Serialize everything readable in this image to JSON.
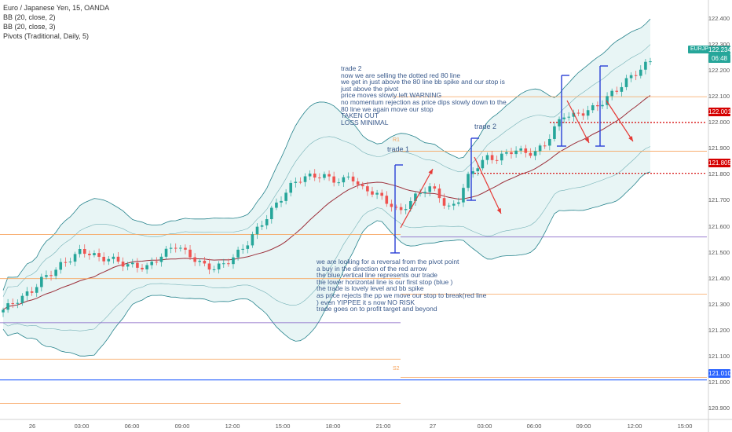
{
  "legend": {
    "symbol": "Euro / Japanese Yen, 15, OANDA",
    "bb1": "BB (20, close, 2)",
    "bb2": "BB (20, close, 3)",
    "pivots": "Pivots (Traditional, Daily, 5)"
  },
  "annotations": {
    "trade1_label": "trade 1",
    "trade2_label": "trade 2",
    "note_top": "trade 2\nnow we are selling the dotted red 80 line\nwe get in just above the 80 line bb spike and our stop is\njust above the pivot\nprice moves slowly left WARNING\nno momentum rejection as price dips slowly down to the\n80 line we again move our stop\nTAKEN OUT\nLOSS MINIMAL",
    "note_bottom": "we are looking for a reversal from the pivot point\na buy in the direction of the red arrow\nthe blue vertical line represents our trade\nthe lower horizontal line is our first stop (blue )\nthe trade is lovely level and bb spike\nas price rejects the pp we move our stop to break(red line\n) even YIPPEE it s now NO RISK\ntrade goes on to profit target and beyond",
    "r1_label": "R1",
    "s2_label": "S2"
  },
  "price_tags": {
    "symbol": "EURJPY",
    "last": "122.234",
    "countdown": "06:48",
    "red_upper": "122.001",
    "red_lower": "121.805",
    "blue_low": "121.010"
  },
  "colors": {
    "bull": "#26a69a",
    "bear": "#ef5350",
    "bb_fill": "#d5ecec",
    "bb_line": "#26838c",
    "basis": "#9c2f3a",
    "pivot_orange": "#f7a35c",
    "pivot_purple": "#7e57c2",
    "blue_line": "#2962ff",
    "red_dotted": "#d50000",
    "trade_blue": "#2a3fd6",
    "arrow_red": "#e53935"
  },
  "chart_data": {
    "type": "candlestick",
    "symbol": "Euro / Japanese Yen, 15, OANDA",
    "ylim": [
      120.87,
      122.46
    ],
    "y_ticks": [
      "122.400",
      "122.300",
      "122.200",
      "122.100",
      "122.000",
      "121.900",
      "121.800",
      "121.700",
      "121.600",
      "121.500",
      "121.400",
      "121.300",
      "121.200",
      "121.100",
      "121.000",
      "120.900"
    ],
    "x_ticks": [
      "26",
      "03:00",
      "06:00",
      "09:00",
      "12:00",
      "15:00",
      "18:00",
      "21:00",
      "27",
      "03:00",
      "06:00",
      "09:00",
      "12:00",
      "15:00"
    ],
    "close_path": [
      121.28,
      121.3,
      121.32,
      121.35,
      121.4,
      121.43,
      121.46,
      121.48,
      121.5,
      121.49,
      121.47,
      121.48,
      121.47,
      121.46,
      121.45,
      121.44,
      121.47,
      121.5,
      121.53,
      121.5,
      121.48,
      121.45,
      121.44,
      121.45,
      121.48,
      121.52,
      121.58,
      121.63,
      121.68,
      121.72,
      121.76,
      121.78,
      121.79,
      121.8,
      121.79,
      121.78,
      121.8,
      121.74,
      121.73,
      121.71,
      121.69,
      121.66,
      121.7,
      121.73,
      121.75,
      121.72,
      121.66,
      121.69,
      121.79,
      121.84,
      121.87,
      121.86,
      121.87,
      121.89,
      121.88,
      121.89,
      121.92,
      121.98,
      122.03,
      122.02,
      122.03,
      122.05,
      122.08,
      122.12,
      122.15,
      122.18,
      122.2,
      122.23
    ],
    "horizontal_lines": [
      {
        "label": "R1",
        "price": 121.89,
        "color": "orange"
      },
      {
        "price": 122.1,
        "color": "orange"
      },
      {
        "price": 122.001,
        "color": "red-dotted"
      },
      {
        "price": 121.805,
        "color": "red-dotted"
      },
      {
        "price": 121.56,
        "color": "purple"
      },
      {
        "price": 121.57,
        "color": "orange"
      },
      {
        "price": 121.4,
        "color": "orange"
      },
      {
        "price": 121.34,
        "color": "orange"
      },
      {
        "price": 121.23,
        "color": "purple"
      },
      {
        "price": 121.09,
        "color": "orange"
      },
      {
        "label": "S2",
        "price": 121.02,
        "color": "orange"
      },
      {
        "price": 121.01,
        "color": "blue"
      },
      {
        "price": 120.92,
        "color": "orange"
      }
    ]
  }
}
